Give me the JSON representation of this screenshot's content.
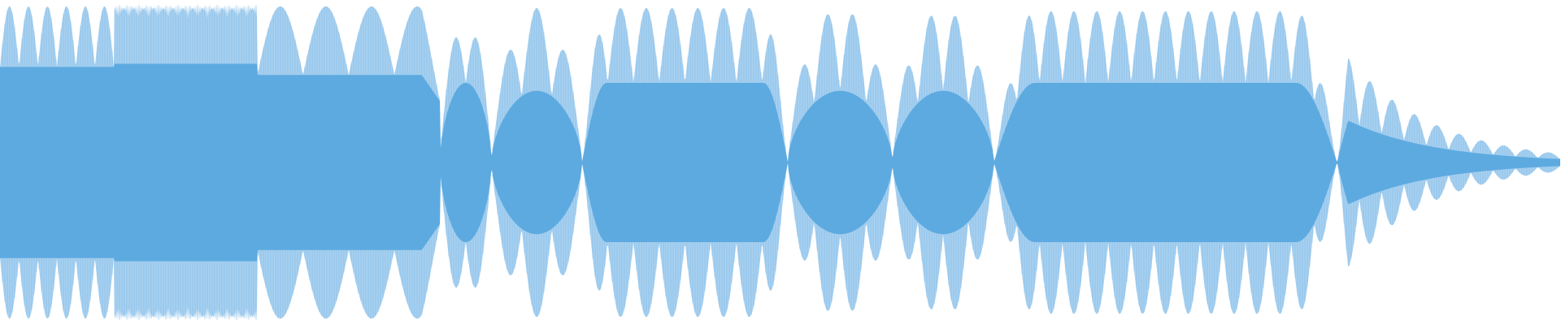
{
  "waveform": {
    "kind": "audio-waveform",
    "fill_color": "#5DAAE0",
    "ripple_color": "#A9D1F0",
    "background_color": "#FFFFFF",
    "display": "peak-envelope",
    "segments": [
      {
        "name": "tremolo-a",
        "span": [
          0.0,
          0.073
        ],
        "core": 0.6,
        "peak": 0.98,
        "ripples": 6,
        "envelope": "flat"
      },
      {
        "name": "buzz",
        "span": [
          0.073,
          0.165
        ],
        "core": 0.62,
        "peak": 0.99,
        "ripples": 0,
        "envelope": "flat"
      },
      {
        "name": "swell-a",
        "span": [
          0.165,
          0.282
        ],
        "core": 0.55,
        "peak": 0.98,
        "ripples": 4,
        "envelope": "wavy-fade"
      },
      {
        "name": "lobe-a",
        "span": [
          0.282,
          0.315
        ],
        "core": 0.5,
        "peak": 0.9,
        "ripples": 2,
        "envelope": "diamond"
      },
      {
        "name": "lobe-b",
        "span": [
          0.315,
          0.373
        ],
        "core": 0.45,
        "peak": 0.97,
        "ripples": 3,
        "envelope": "diamond"
      },
      {
        "name": "lobe-c",
        "span": [
          0.373,
          0.505
        ],
        "core": 0.5,
        "peak": 0.97,
        "ripples": 8,
        "envelope": "plateau"
      },
      {
        "name": "lobe-d",
        "span": [
          0.505,
          0.572
        ],
        "core": 0.45,
        "peak": 0.97,
        "ripples": 4,
        "envelope": "diamond"
      },
      {
        "name": "lobe-e",
        "span": [
          0.572,
          0.637
        ],
        "core": 0.45,
        "peak": 0.96,
        "ripples": 4,
        "envelope": "diamond"
      },
      {
        "name": "lobe-f",
        "span": [
          0.637,
          0.857
        ],
        "core": 0.5,
        "peak": 0.95,
        "ripples": 15,
        "envelope": "plateau"
      },
      {
        "name": "decay",
        "span": [
          0.857,
          1.0
        ],
        "core": 0.3,
        "peak": 0.75,
        "ripples": 10,
        "envelope": "decay"
      }
    ]
  }
}
